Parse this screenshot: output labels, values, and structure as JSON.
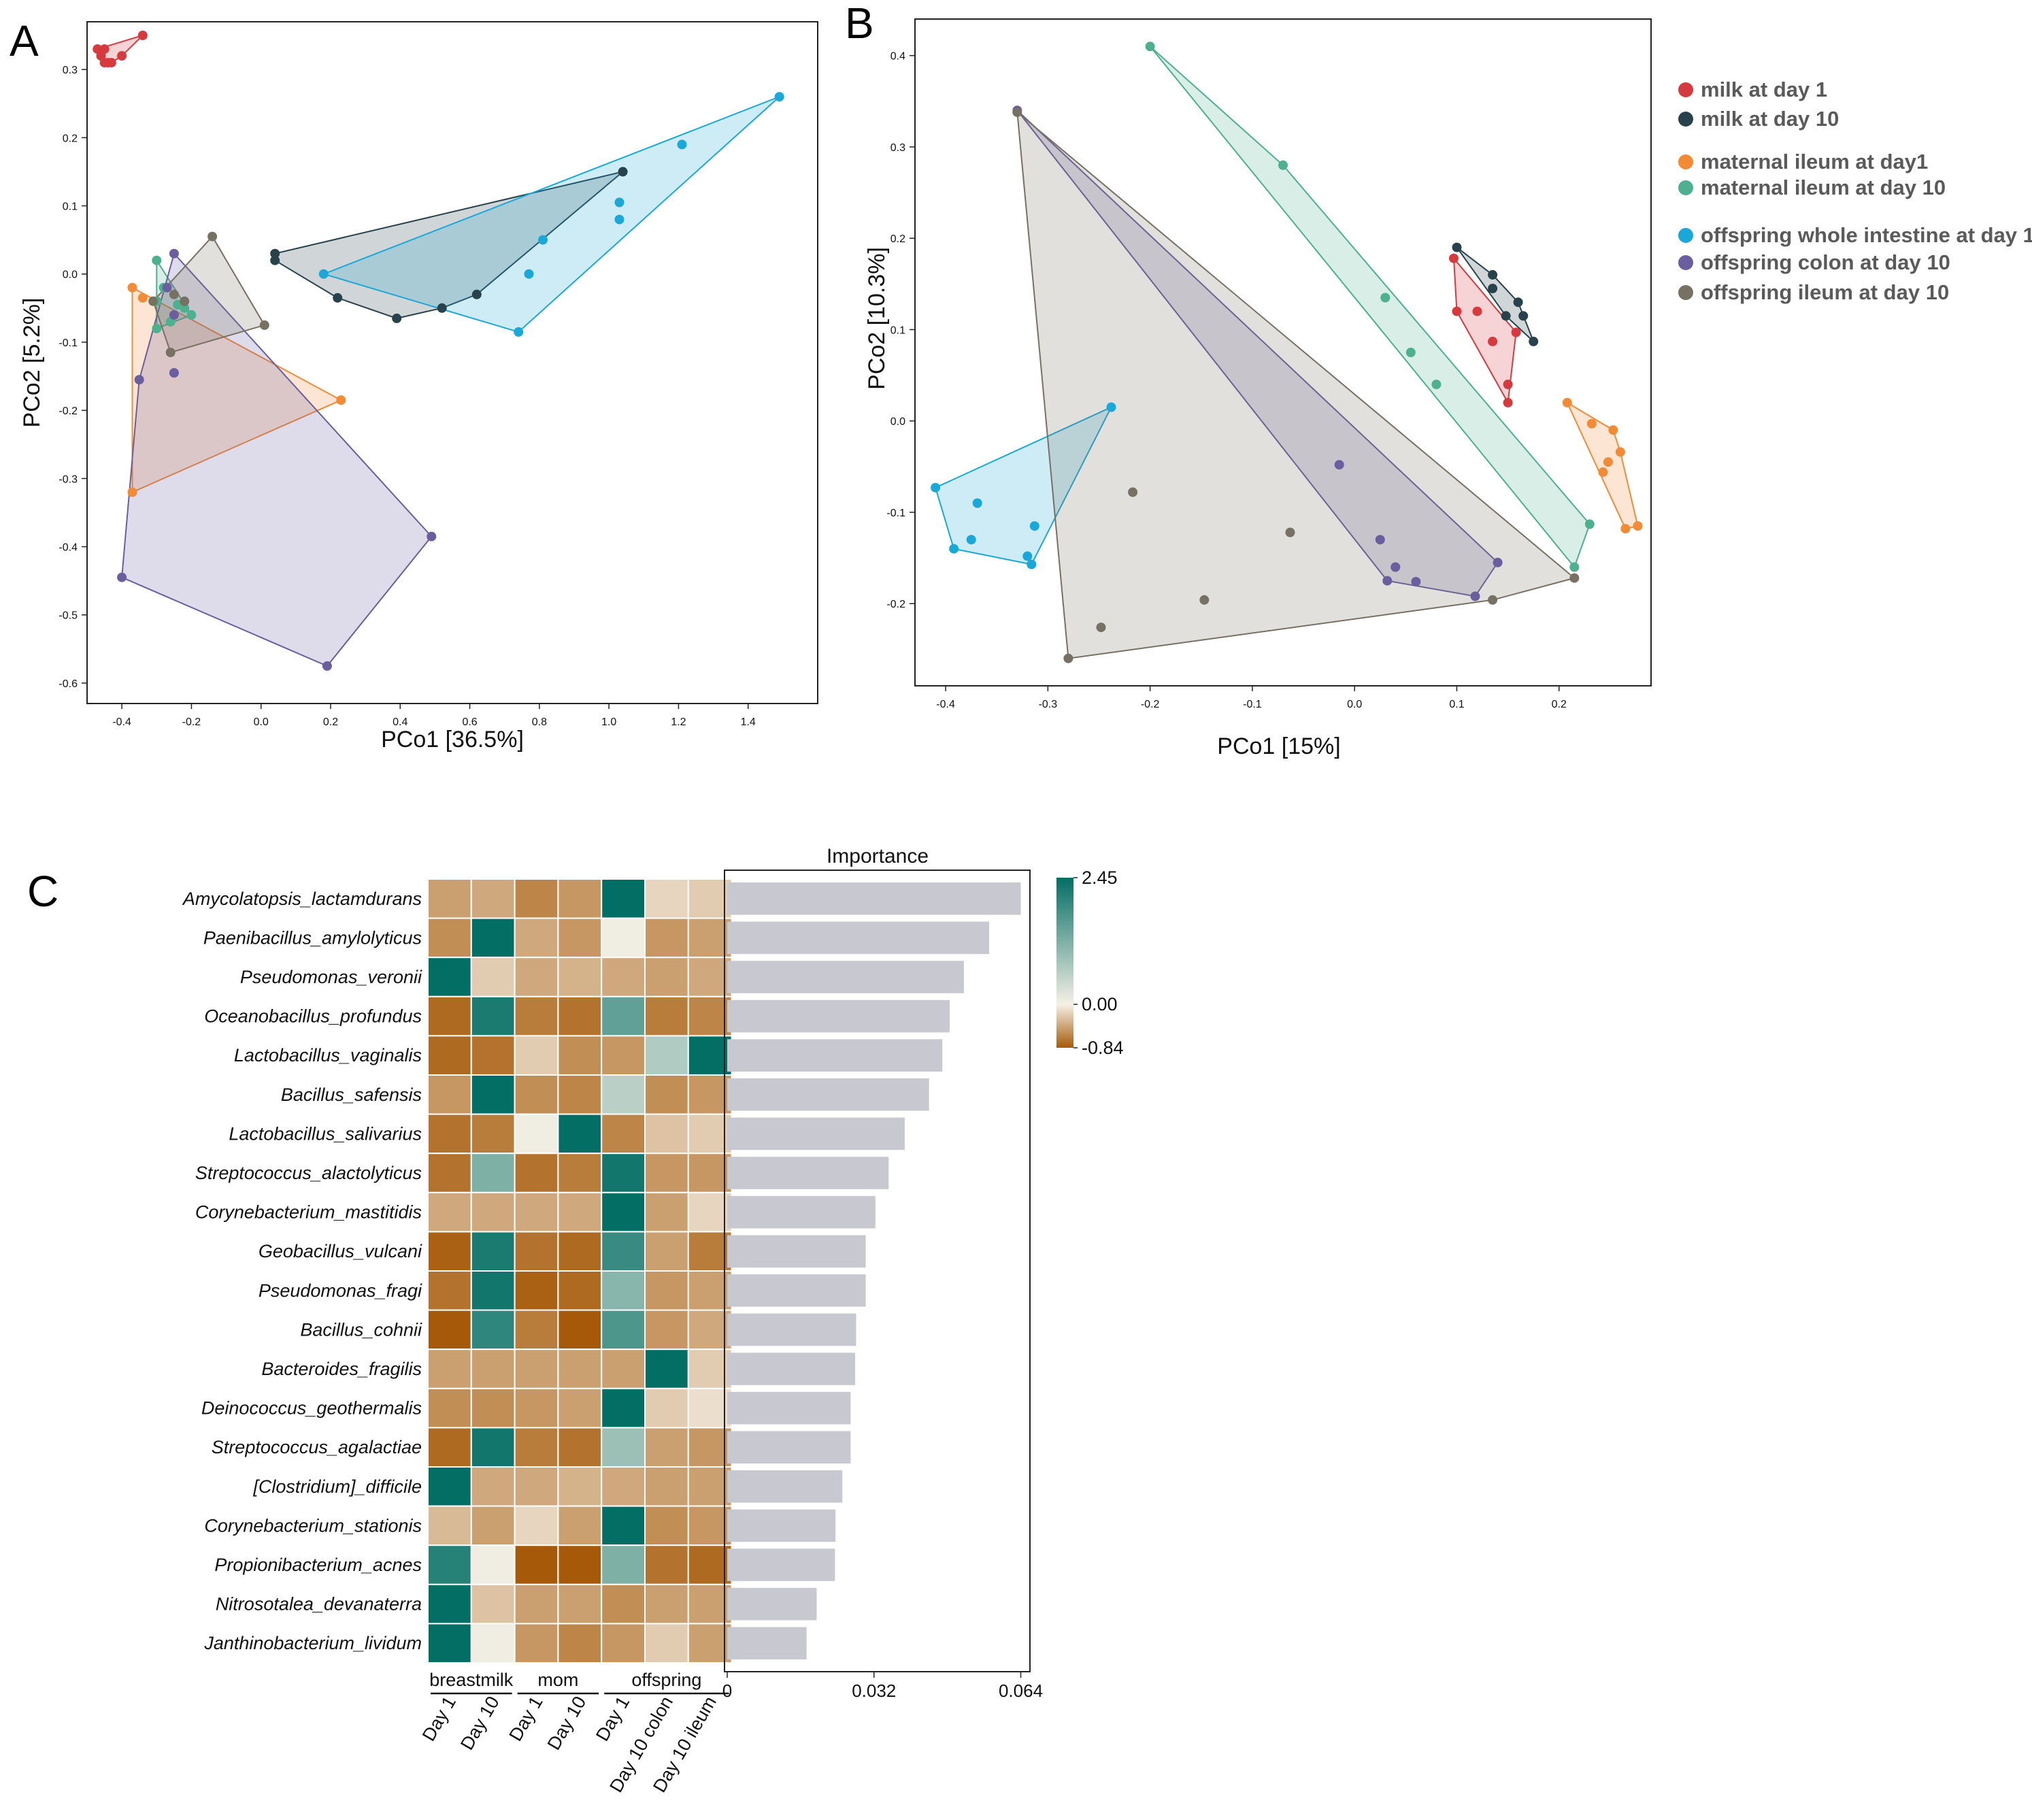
{
  "chart_data": [
    {
      "type": "scatter",
      "panel": "A",
      "xlabel": "PCo1 [36.5%]",
      "ylabel": "PCo2 [5.2%]",
      "xlim": [
        -0.5,
        1.6
      ],
      "ylim": [
        -0.63,
        0.37
      ],
      "xticks": [
        "-0.4",
        "-0.2",
        "0.0",
        "0.2",
        "0.4",
        "0.6",
        "0.8",
        "1.0",
        "1.2",
        "1.4"
      ],
      "yticks": [
        "0.3",
        "0.2",
        "0.1",
        "0.0",
        "-0.1",
        "-0.2",
        "-0.3",
        "-0.4",
        "-0.5",
        "-0.6"
      ],
      "series": [
        {
          "name": "milk at day 1",
          "color": "#d63a3f",
          "points": [
            [
              -0.47,
              0.33
            ],
            [
              -0.45,
              0.33
            ],
            [
              -0.46,
              0.32
            ],
            [
              -0.44,
              0.31
            ],
            [
              -0.45,
              0.31
            ],
            [
              -0.43,
              0.31
            ],
            [
              -0.4,
              0.32
            ],
            [
              -0.34,
              0.35
            ]
          ]
        },
        {
          "name": "milk at day 10",
          "color": "#27424b",
          "points": [
            [
              0.04,
              0.03
            ],
            [
              0.04,
              0.02
            ],
            [
              0.22,
              -0.035
            ],
            [
              0.39,
              -0.065
            ],
            [
              0.52,
              -0.05
            ],
            [
              0.62,
              -0.03
            ],
            [
              1.04,
              0.15
            ]
          ]
        },
        {
          "name": "maternal ileum at day1",
          "color": "#f28a36",
          "points": [
            [
              -0.37,
              -0.02
            ],
            [
              -0.34,
              -0.035
            ],
            [
              -0.3,
              -0.04
            ],
            [
              0.23,
              -0.185
            ],
            [
              -0.37,
              -0.32
            ]
          ]
        },
        {
          "name": "maternal ileum at day 10",
          "color": "#4db08e",
          "points": [
            [
              -0.3,
              0.02
            ],
            [
              -0.28,
              -0.02
            ],
            [
              -0.3,
              -0.04
            ],
            [
              -0.24,
              -0.045
            ],
            [
              -0.22,
              -0.05
            ],
            [
              -0.2,
              -0.06
            ],
            [
              -0.26,
              -0.07
            ],
            [
              -0.3,
              -0.08
            ]
          ]
        },
        {
          "name": "offspring whole intestine at day 1",
          "color": "#1aa8d8",
          "points": [
            [
              0.18,
              0.0
            ],
            [
              0.74,
              -0.085
            ],
            [
              0.77,
              0.0
            ],
            [
              0.81,
              0.05
            ],
            [
              1.03,
              0.08
            ],
            [
              1.03,
              0.105
            ],
            [
              1.21,
              0.19
            ],
            [
              1.49,
              0.26
            ]
          ]
        },
        {
          "name": "offspring colon at day 10",
          "color": "#6b5e9e",
          "points": [
            [
              -0.25,
              0.03
            ],
            [
              -0.27,
              -0.02
            ],
            [
              -0.25,
              -0.06
            ],
            [
              -0.25,
              -0.145
            ],
            [
              -0.35,
              -0.155
            ],
            [
              -0.4,
              -0.445
            ],
            [
              0.49,
              -0.385
            ],
            [
              0.19,
              -0.575
            ]
          ]
        },
        {
          "name": "offspring ileum at day 10",
          "color": "#777163",
          "points": [
            [
              -0.14,
              0.055
            ],
            [
              -0.31,
              -0.04
            ],
            [
              -0.25,
              -0.03
            ],
            [
              -0.22,
              -0.04
            ],
            [
              -0.26,
              -0.115
            ],
            [
              0.01,
              -0.075
            ]
          ]
        }
      ]
    },
    {
      "type": "scatter",
      "panel": "B",
      "xlabel": "PCo1 [15%]",
      "ylabel": "PCo2 [10.3%]",
      "xlim": [
        -0.43,
        0.29
      ],
      "ylim": [
        -0.29,
        0.44
      ],
      "xticks": [
        "-0.4",
        "-0.3",
        "-0.2",
        "-0.1",
        "0.0",
        "0.1",
        "0.2"
      ],
      "yticks": [
        "0.4",
        "0.3",
        "0.2",
        "0.1",
        "0.0",
        "-0.1",
        "-0.2"
      ],
      "series": [
        {
          "name": "milk at day 1",
          "color": "#d63a3f",
          "points": [
            [
              0.097,
              0.178
            ],
            [
              0.1,
              0.12
            ],
            [
              0.12,
              0.12
            ],
            [
              0.135,
              0.087
            ],
            [
              0.158,
              0.097
            ],
            [
              0.15,
              0.04
            ],
            [
              0.15,
              0.02
            ]
          ]
        },
        {
          "name": "milk at day 10",
          "color": "#27424b",
          "points": [
            [
              0.1,
              0.19
            ],
            [
              0.135,
              0.16
            ],
            [
              0.135,
              0.145
            ],
            [
              0.16,
              0.13
            ],
            [
              0.165,
              0.115
            ],
            [
              0.148,
              0.115
            ],
            [
              0.175,
              0.087
            ]
          ]
        },
        {
          "name": "maternal ileum at day1",
          "color": "#f28a36",
          "points": [
            [
              0.208,
              0.02
            ],
            [
              0.232,
              -0.003
            ],
            [
              0.253,
              -0.01
            ],
            [
              0.26,
              -0.034
            ],
            [
              0.248,
              -0.045
            ],
            [
              0.243,
              -0.056
            ],
            [
              0.265,
              -0.118
            ],
            [
              0.277,
              -0.115
            ]
          ]
        },
        {
          "name": "maternal ileum at day 10",
          "color": "#4db08e",
          "points": [
            [
              -0.2,
              0.41
            ],
            [
              -0.07,
              0.28
            ],
            [
              0.03,
              0.135
            ],
            [
              0.055,
              0.075
            ],
            [
              0.08,
              0.04
            ],
            [
              0.23,
              -0.113
            ],
            [
              0.215,
              -0.16
            ]
          ]
        },
        {
          "name": "offspring whole intestine at day 1",
          "color": "#1aa8d8",
          "points": [
            [
              -0.238,
              0.015
            ],
            [
              -0.41,
              -0.073
            ],
            [
              -0.369,
              -0.09
            ],
            [
              -0.375,
              -0.13
            ],
            [
              -0.392,
              -0.14
            ],
            [
              -0.313,
              -0.115
            ],
            [
              -0.32,
              -0.148
            ],
            [
              -0.316,
              -0.157
            ]
          ]
        },
        {
          "name": "offspring colon at day 10",
          "color": "#6b5e9e",
          "points": [
            [
              -0.33,
              0.34
            ],
            [
              -0.015,
              -0.048
            ],
            [
              0.025,
              -0.13
            ],
            [
              0.04,
              -0.16
            ],
            [
              0.032,
              -0.175
            ],
            [
              0.06,
              -0.176
            ],
            [
              0.14,
              -0.155
            ],
            [
              0.118,
              -0.192
            ]
          ]
        },
        {
          "name": "offspring ileum at day 10",
          "color": "#777163",
          "points": [
            [
              -0.33,
              0.338
            ],
            [
              -0.217,
              -0.078
            ],
            [
              -0.063,
              -0.122
            ],
            [
              -0.147,
              -0.196
            ],
            [
              -0.248,
              -0.226
            ],
            [
              -0.28,
              -0.26
            ],
            [
              0.135,
              -0.196
            ],
            [
              0.215,
              -0.172
            ]
          ]
        }
      ]
    },
    {
      "type": "heatmap",
      "panel": "C",
      "title": "Importance",
      "rows": [
        "Amycolatopsis_lactamdurans",
        "Paenibacillus_amylolyticus",
        "Pseudomonas_veronii",
        "Oceanobacillus_profundus",
        "Lactobacillus_vaginalis",
        "Bacillus_safensis",
        "Lactobacillus_salivarius",
        "Streptococcus_alactolyticus",
        "Corynebacterium_mastitidis",
        "Geobacillus_vulcani",
        "Pseudomonas_fragi",
        "Bacillus_cohnii",
        "Bacteroides_fragilis",
        "Deinococcus_geothermalis",
        "Streptococcus_agalactiae",
        "[Clostridium]_difficile",
        "Corynebacterium_stationis",
        "Propionibacterium_acnes",
        "Nitrosotalea_devanaterra",
        "Janthinobacterium_lividum"
      ],
      "columns": [
        "Day 1",
        "Day 10",
        "Day 1",
        "Day 10",
        "Day 1",
        "Day 10 colon",
        "Day 10 ileum"
      ],
      "column_groups": [
        {
          "label": "breastmilk",
          "span": 2
        },
        {
          "label": "mom",
          "span": 2
        },
        {
          "label": "offspring",
          "span": 3
        }
      ],
      "color_scale": {
        "min": -0.84,
        "mid": 0.0,
        "max": 2.45,
        "low_color": "#a65a09",
        "mid_color": "#f5f0e6",
        "high_color": "#036e64",
        "labels": [
          "2.45",
          "0.00",
          "-0.84"
        ]
      },
      "values": [
        [
          -0.45,
          -0.4,
          -0.6,
          -0.5,
          2.45,
          -0.15,
          -0.2
        ],
        [
          -0.55,
          2.45,
          -0.4,
          -0.5,
          0.05,
          -0.5,
          -0.45
        ],
        [
          2.45,
          -0.2,
          -0.4,
          -0.35,
          -0.4,
          -0.45,
          -0.4
        ],
        [
          -0.75,
          2.2,
          -0.65,
          -0.7,
          1.5,
          -0.65,
          -0.6
        ],
        [
          -0.75,
          -0.7,
          -0.2,
          -0.55,
          -0.5,
          0.7,
          2.45
        ],
        [
          -0.5,
          2.45,
          -0.55,
          -0.6,
          0.6,
          -0.55,
          -0.5
        ],
        [
          -0.7,
          -0.65,
          0.05,
          2.45,
          -0.6,
          -0.25,
          -0.2
        ],
        [
          -0.7,
          1.2,
          -0.7,
          -0.65,
          2.3,
          -0.5,
          -0.5
        ],
        [
          -0.4,
          -0.4,
          -0.4,
          -0.4,
          2.45,
          -0.45,
          -0.15
        ],
        [
          -0.8,
          2.2,
          -0.7,
          -0.75,
          1.9,
          -0.45,
          -0.65
        ],
        [
          -0.7,
          2.3,
          -0.8,
          -0.75,
          1.1,
          -0.5,
          -0.45
        ],
        [
          -0.84,
          2.0,
          -0.65,
          -0.84,
          1.7,
          -0.5,
          -0.4
        ],
        [
          -0.45,
          -0.45,
          -0.45,
          -0.45,
          -0.45,
          2.45,
          -0.2
        ],
        [
          -0.55,
          -0.55,
          -0.5,
          -0.45,
          2.45,
          -0.2,
          -0.1
        ],
        [
          -0.75,
          2.3,
          -0.65,
          -0.7,
          0.9,
          -0.45,
          -0.5
        ],
        [
          2.45,
          -0.4,
          -0.4,
          -0.35,
          -0.4,
          -0.45,
          -0.45
        ],
        [
          -0.3,
          -0.45,
          -0.15,
          -0.45,
          2.45,
          -0.55,
          -0.5
        ],
        [
          2.1,
          0.05,
          -0.84,
          -0.84,
          1.2,
          -0.7,
          -0.75
        ],
        [
          2.45,
          -0.25,
          -0.45,
          -0.45,
          -0.55,
          -0.45,
          -0.45
        ],
        [
          2.45,
          0.05,
          -0.5,
          -0.6,
          -0.5,
          -0.2,
          -0.45
        ]
      ],
      "importance": [
        0.064,
        0.0571,
        0.0516,
        0.0485,
        0.0469,
        0.044,
        0.0387,
        0.0352,
        0.0323,
        0.0302,
        0.0302,
        0.0281,
        0.0279,
        0.0269,
        0.0269,
        0.0251,
        0.0236,
        0.0235,
        0.0195,
        0.0173
      ],
      "importance_xlim": [
        0,
        0.066
      ],
      "importance_ticks": [
        "0",
        "0.032",
        "0.064"
      ]
    }
  ],
  "panels": {
    "a": {
      "letter": "A"
    },
    "b": {
      "letter": "B"
    },
    "c": {
      "letter": "C"
    }
  },
  "legend": {
    "items": [
      {
        "label": "milk at day 1",
        "color": "#d63a3f"
      },
      {
        "label": "milk at day 10",
        "color": "#27424b"
      },
      {
        "label": "maternal ileum at day1",
        "color": "#f28a36"
      },
      {
        "label": "maternal ileum at day 10",
        "color": "#4db08e"
      },
      {
        "label": "offspring whole intestine at day 1",
        "color": "#1aa8d8"
      },
      {
        "label": "offspring colon at day 10",
        "color": "#6b5e9e"
      },
      {
        "label": "offspring ileum at day 10",
        "color": "#777163"
      }
    ]
  }
}
